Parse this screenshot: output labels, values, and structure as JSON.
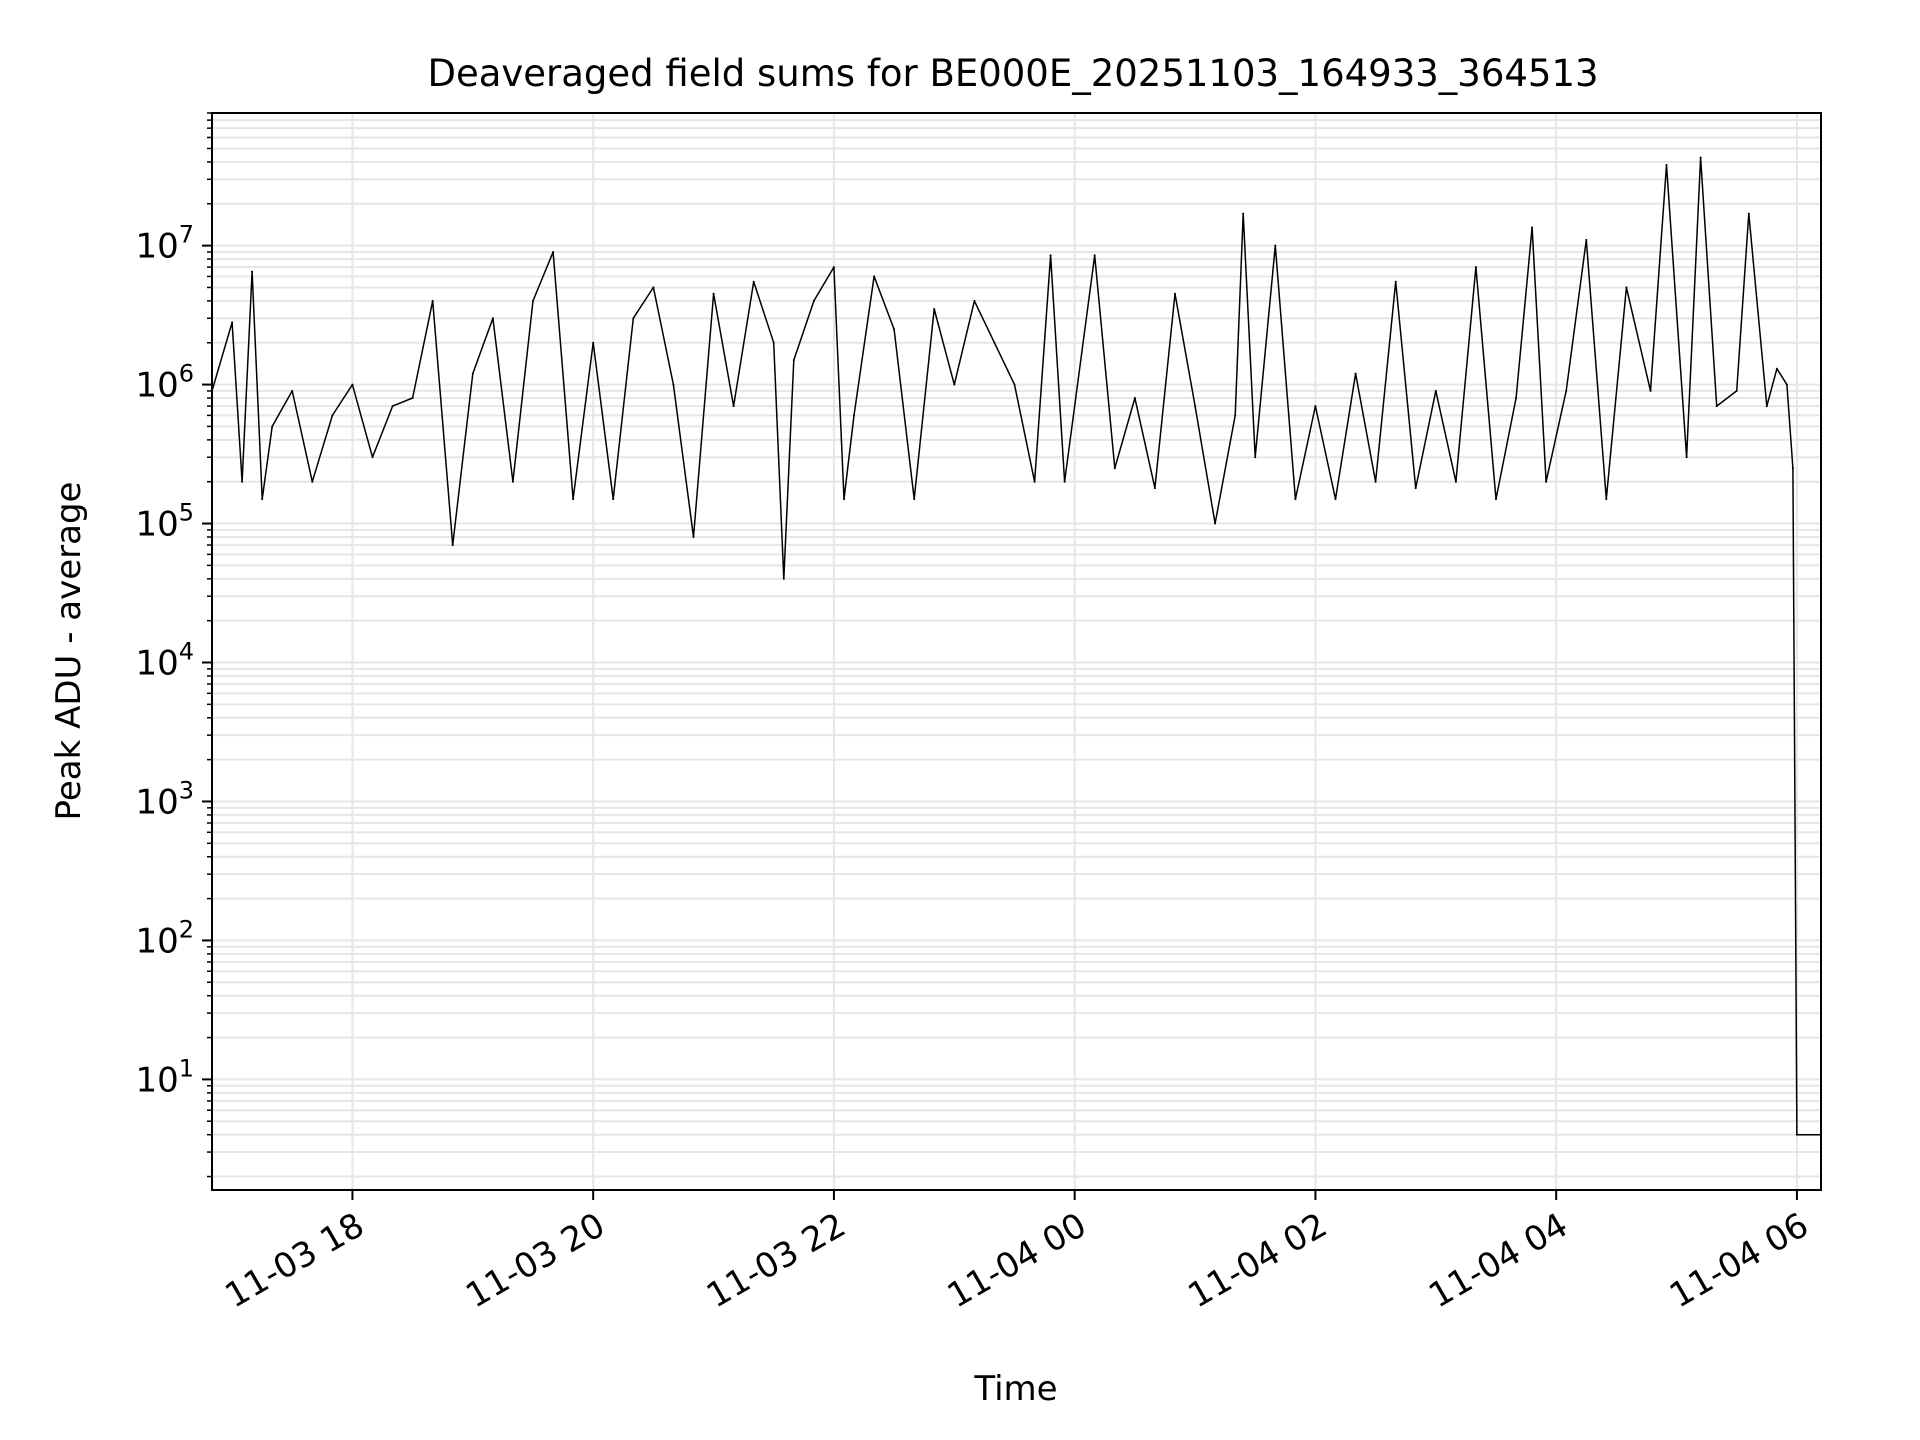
{
  "chart_data": {
    "type": "line",
    "title": "Deaveraged field sums for BE000E_20251103_164933_364513",
    "xlabel": "Time",
    "ylabel": "Peak ADU - average",
    "yscale": "log",
    "grid": true,
    "xlim": [
      "2025-11-03 16:50",
      "2025-11-04 06:12"
    ],
    "ylim": [
      1.6,
      90000000.0
    ],
    "x_ticks": [
      {
        "value": "2025-11-03 18:00",
        "label": "11-03 18"
      },
      {
        "value": "2025-11-03 20:00",
        "label": "11-03 20"
      },
      {
        "value": "2025-11-03 22:00",
        "label": "11-03 22"
      },
      {
        "value": "2025-11-04 00:00",
        "label": "11-04 00"
      },
      {
        "value": "2025-11-04 02:00",
        "label": "11-04 02"
      },
      {
        "value": "2025-11-04 04:00",
        "label": "11-04 04"
      },
      {
        "value": "2025-11-04 06:00",
        "label": "11-04 06"
      }
    ],
    "y_ticks": [
      {
        "value": 10,
        "base": "10",
        "exp": "1"
      },
      {
        "value": 100,
        "base": "10",
        "exp": "2"
      },
      {
        "value": 1000,
        "base": "10",
        "exp": "3"
      },
      {
        "value": 10000,
        "base": "10",
        "exp": "4"
      },
      {
        "value": 100000,
        "base": "10",
        "exp": "5"
      },
      {
        "value": 1000000,
        "base": "10",
        "exp": "6"
      },
      {
        "value": 10000000,
        "base": "10",
        "exp": "7"
      }
    ],
    "series": [
      {
        "color": "#000000",
        "x": [
          "2025-11-03 16:50",
          "2025-11-03 17:00",
          "2025-11-03 17:05",
          "2025-11-03 17:10",
          "2025-11-03 17:15",
          "2025-11-03 17:20",
          "2025-11-03 17:30",
          "2025-11-03 17:40",
          "2025-11-03 17:50",
          "2025-11-03 18:00",
          "2025-11-03 18:10",
          "2025-11-03 18:20",
          "2025-11-03 18:30",
          "2025-11-03 18:40",
          "2025-11-03 18:50",
          "2025-11-03 19:00",
          "2025-11-03 19:10",
          "2025-11-03 19:20",
          "2025-11-03 19:30",
          "2025-11-03 19:40",
          "2025-11-03 19:50",
          "2025-11-03 20:00",
          "2025-11-03 20:10",
          "2025-11-03 20:20",
          "2025-11-03 20:30",
          "2025-11-03 20:40",
          "2025-11-03 20:50",
          "2025-11-03 21:00",
          "2025-11-03 21:10",
          "2025-11-03 21:20",
          "2025-11-03 21:30",
          "2025-11-03 21:35",
          "2025-11-03 21:40",
          "2025-11-03 21:50",
          "2025-11-03 22:00",
          "2025-11-03 22:05",
          "2025-11-03 22:10",
          "2025-11-03 22:20",
          "2025-11-03 22:30",
          "2025-11-03 22:40",
          "2025-11-03 22:50",
          "2025-11-03 23:00",
          "2025-11-03 23:10",
          "2025-11-03 23:20",
          "2025-11-03 23:30",
          "2025-11-03 23:40",
          "2025-11-03 23:48",
          "2025-11-03 23:55",
          "2025-11-04 00:10",
          "2025-11-04 00:20",
          "2025-11-04 00:30",
          "2025-11-04 00:40",
          "2025-11-04 00:50",
          "2025-11-04 01:00",
          "2025-11-04 01:10",
          "2025-11-04 01:20",
          "2025-11-04 01:24",
          "2025-11-04 01:30",
          "2025-11-04 01:40",
          "2025-11-04 01:50",
          "2025-11-04 02:00",
          "2025-11-04 02:10",
          "2025-11-04 02:20",
          "2025-11-04 02:30",
          "2025-11-04 02:40",
          "2025-11-04 02:50",
          "2025-11-04 03:00",
          "2025-11-04 03:10",
          "2025-11-04 03:20",
          "2025-11-04 03:30",
          "2025-11-04 03:40",
          "2025-11-04 03:48",
          "2025-11-04 03:55",
          "2025-11-04 04:05",
          "2025-11-04 04:15",
          "2025-11-04 04:25",
          "2025-11-04 04:35",
          "2025-11-04 04:47",
          "2025-11-04 04:55",
          "2025-11-04 05:05",
          "2025-11-04 05:12",
          "2025-11-04 05:20",
          "2025-11-04 05:30",
          "2025-11-04 05:36",
          "2025-11-04 05:45",
          "2025-11-04 05:50",
          "2025-11-04 05:55",
          "2025-11-04 05:58",
          "2025-11-04 06:00",
          "2025-11-04 06:12"
        ],
        "y": [
          900000,
          2800000,
          200000,
          6500000,
          150000,
          500000,
          900000,
          200000,
          600000,
          1000000,
          300000,
          700000,
          800000,
          4000000,
          70000,
          1200000,
          3000000,
          200000,
          4000000,
          9000000,
          150000,
          2000000,
          150000,
          3000000,
          5000000,
          1000000,
          80000,
          4500000,
          700000,
          5500000,
          2000000,
          40000,
          1500000,
          4000000,
          7000000,
          150000,
          600000,
          6000000,
          2500000,
          150000,
          3500000,
          1000000,
          4000000,
          2000000,
          1000000,
          200000,
          8500000,
          200000,
          8500000,
          250000,
          800000,
          180000,
          4500000,
          700000,
          100000,
          600000,
          17000000,
          300000,
          10000000,
          150000,
          700000,
          150000,
          1200000,
          200000,
          5500000,
          180000,
          900000,
          200000,
          7000000,
          150000,
          800000,
          13500000,
          200000,
          900000,
          11000000,
          150000,
          5000000,
          900000,
          38000000,
          300000,
          43000000,
          700000,
          900000,
          17000000,
          700000,
          1300000,
          1000000,
          250000,
          4,
          4
        ]
      }
    ]
  }
}
